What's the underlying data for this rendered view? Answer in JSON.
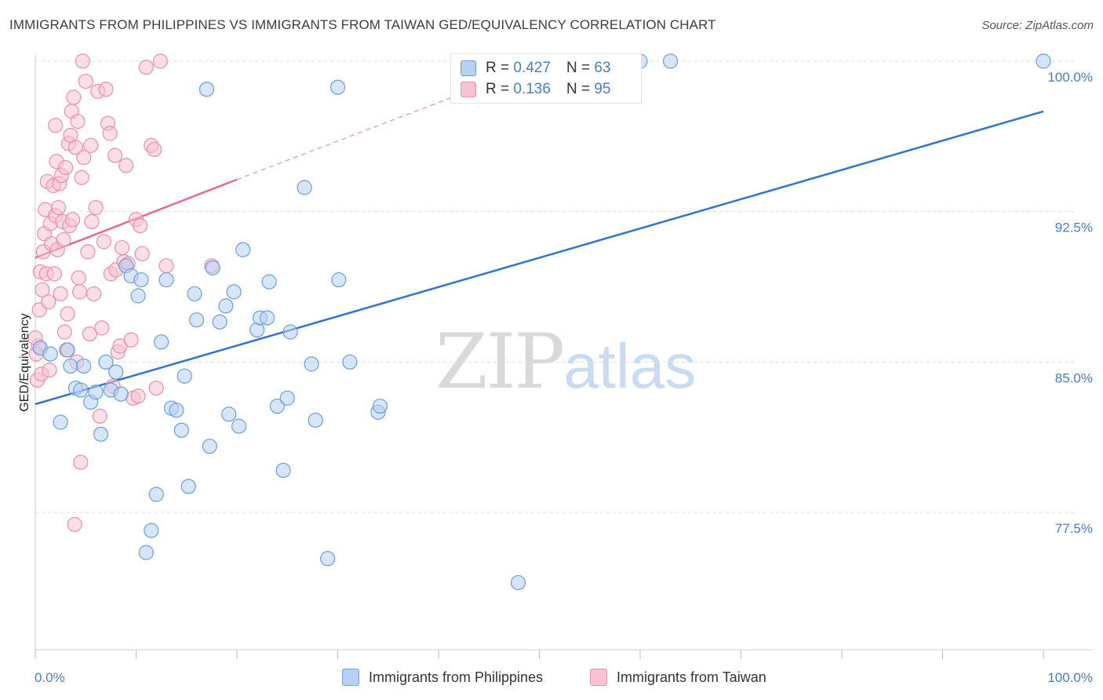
{
  "title": "IMMIGRANTS FROM PHILIPPINES VS IMMIGRANTS FROM TAIWAN GED/EQUIVALENCY CORRELATION CHART",
  "source": "Source: ZipAtlas.com",
  "watermark": {
    "zip": "ZIP",
    "atlas": "atlas"
  },
  "legend_top": [
    {
      "r_label": "R =",
      "r_value": "0.427",
      "n_label": "N =",
      "n_value": "63"
    },
    {
      "r_label": "R =",
      "r_value": "0.136",
      "n_label": "N =",
      "n_value": "95"
    }
  ],
  "colors": {
    "blue_fill": "#b7d0f3",
    "blue_stroke": "#6b9ee0",
    "blue_line": "#3374cc",
    "pink_fill": "#f7c2d1",
    "pink_stroke": "#eb8fab",
    "pink_line": "#e56a93",
    "grid": "#dddddd",
    "axis_label": "#4a7cc9"
  },
  "chart_data": {
    "type": "scatter",
    "title": "IMMIGRANTS FROM PHILIPPINES VS IMMIGRANTS FROM TAIWAN GED/EQUIVALENCY CORRELATION CHART",
    "xlabel": "",
    "ylabel": "GED/Equivalency",
    "xlim": [
      0,
      100
    ],
    "ylim": [
      71.5,
      101.5
    ],
    "x_tick_labels": [
      "0.0%",
      "100.0%"
    ],
    "y_ticks": [
      77.5,
      85.0,
      92.5,
      100.0
    ],
    "y_tick_labels": [
      "77.5%",
      "85.0%",
      "92.5%",
      "100.0%"
    ],
    "grid": true,
    "legend_position": "bottom",
    "series": [
      {
        "name": "Immigrants from Philippines",
        "color": "blue",
        "trend": {
          "x": [
            0,
            100
          ],
          "y": [
            82.9,
            97.5
          ],
          "dashed_extension": false
        },
        "points": [
          [
            0.5,
            85.7
          ],
          [
            1.5,
            85.4
          ],
          [
            2.5,
            82.0
          ],
          [
            3.2,
            85.6
          ],
          [
            3.5,
            84.8
          ],
          [
            4.0,
            83.7
          ],
          [
            4.5,
            83.6
          ],
          [
            4.8,
            84.8
          ],
          [
            5.5,
            83.0
          ],
          [
            6.0,
            83.5
          ],
          [
            6.5,
            81.4
          ],
          [
            7.0,
            85.0
          ],
          [
            7.5,
            83.6
          ],
          [
            8.0,
            84.5
          ],
          [
            8.5,
            83.4
          ],
          [
            9.0,
            89.8
          ],
          [
            9.5,
            89.3
          ],
          [
            10.2,
            88.3
          ],
          [
            10.5,
            89.1
          ],
          [
            11.0,
            75.5
          ],
          [
            11.5,
            76.6
          ],
          [
            12.0,
            78.4
          ],
          [
            12.5,
            86.0
          ],
          [
            13.0,
            89.1
          ],
          [
            13.5,
            82.7
          ],
          [
            14.0,
            82.6
          ],
          [
            14.5,
            81.6
          ],
          [
            14.8,
            84.3
          ],
          [
            15.2,
            78.8
          ],
          [
            15.8,
            88.4
          ],
          [
            16.0,
            87.1
          ],
          [
            17.0,
            98.6
          ],
          [
            17.3,
            80.8
          ],
          [
            17.6,
            89.7
          ],
          [
            18.3,
            87.0
          ],
          [
            18.9,
            87.8
          ],
          [
            19.2,
            82.4
          ],
          [
            19.7,
            88.5
          ],
          [
            20.2,
            81.8
          ],
          [
            20.6,
            90.6
          ],
          [
            22.0,
            86.6
          ],
          [
            22.3,
            87.2
          ],
          [
            23.0,
            87.2
          ],
          [
            23.2,
            89.0
          ],
          [
            24.0,
            82.8
          ],
          [
            24.6,
            79.6
          ],
          [
            25.0,
            83.2
          ],
          [
            25.3,
            86.5
          ],
          [
            26.7,
            93.7
          ],
          [
            27.4,
            84.9
          ],
          [
            27.8,
            82.1
          ],
          [
            29.0,
            75.2
          ],
          [
            30.1,
            89.1
          ],
          [
            30.0,
            98.7
          ],
          [
            31.2,
            85.0
          ],
          [
            34.0,
            82.5
          ],
          [
            34.2,
            82.8
          ],
          [
            47.9,
            74.0
          ],
          [
            60.0,
            100.0
          ],
          [
            63.0,
            100.0
          ],
          [
            100.0,
            100.0
          ]
        ]
      },
      {
        "name": "Immigrants from Taiwan",
        "color": "pink",
        "trend": {
          "x": [
            0,
            20
          ],
          "y": [
            90.2,
            94.1
          ],
          "dashed_extension": true,
          "dashed_to": [
            45,
            98.9
          ]
        },
        "points": [
          [
            0.2,
            84.1
          ],
          [
            0.3,
            85.8
          ],
          [
            0.4,
            87.6
          ],
          [
            0.5,
            89.5
          ],
          [
            0.6,
            84.4
          ],
          [
            0.7,
            88.6
          ],
          [
            0.8,
            90.5
          ],
          [
            0.9,
            91.4
          ],
          [
            1.0,
            92.6
          ],
          [
            1.1,
            89.4
          ],
          [
            1.2,
            94.0
          ],
          [
            1.3,
            88.0
          ],
          [
            1.5,
            91.9
          ],
          [
            1.6,
            90.9
          ],
          [
            1.8,
            93.8
          ],
          [
            1.9,
            89.4
          ],
          [
            2.0,
            92.3
          ],
          [
            2.1,
            95.0
          ],
          [
            2.2,
            90.6
          ],
          [
            2.3,
            92.7
          ],
          [
            2.4,
            93.9
          ],
          [
            2.5,
            88.4
          ],
          [
            2.6,
            94.3
          ],
          [
            2.7,
            92.0
          ],
          [
            2.8,
            91.1
          ],
          [
            2.9,
            86.5
          ],
          [
            3.0,
            94.7
          ],
          [
            3.1,
            85.6
          ],
          [
            3.2,
            87.4
          ],
          [
            3.3,
            95.9
          ],
          [
            3.4,
            91.8
          ],
          [
            3.5,
            96.3
          ],
          [
            3.6,
            97.5
          ],
          [
            3.7,
            92.1
          ],
          [
            3.8,
            98.2
          ],
          [
            3.9,
            76.9
          ],
          [
            4.0,
            95.7
          ],
          [
            4.1,
            85.0
          ],
          [
            4.2,
            97.0
          ],
          [
            4.3,
            89.2
          ],
          [
            4.4,
            88.5
          ],
          [
            4.5,
            80.0
          ],
          [
            4.6,
            94.2
          ],
          [
            4.8,
            95.2
          ],
          [
            5.0,
            99.0
          ],
          [
            5.2,
            90.5
          ],
          [
            5.4,
            86.4
          ],
          [
            5.5,
            95.8
          ],
          [
            5.6,
            92.0
          ],
          [
            5.8,
            88.4
          ],
          [
            6.0,
            92.7
          ],
          [
            6.2,
            98.5
          ],
          [
            6.4,
            82.3
          ],
          [
            6.6,
            86.7
          ],
          [
            6.8,
            91.0
          ],
          [
            7.0,
            98.6
          ],
          [
            7.2,
            96.9
          ],
          [
            7.4,
            96.4
          ],
          [
            7.5,
            89.4
          ],
          [
            7.7,
            83.8
          ],
          [
            7.9,
            95.3
          ],
          [
            8.0,
            89.6
          ],
          [
            8.2,
            85.5
          ],
          [
            8.4,
            85.8
          ],
          [
            8.6,
            90.7
          ],
          [
            8.8,
            90.0
          ],
          [
            9.0,
            94.8
          ],
          [
            9.2,
            89.9
          ],
          [
            9.5,
            86.1
          ],
          [
            9.7,
            83.2
          ],
          [
            10.0,
            92.1
          ],
          [
            10.2,
            83.3
          ],
          [
            10.4,
            91.8
          ],
          [
            10.6,
            90.4
          ],
          [
            11.0,
            99.7
          ],
          [
            11.5,
            95.8
          ],
          [
            11.8,
            95.6
          ],
          [
            12.0,
            83.7
          ],
          [
            12.4,
            100.0
          ],
          [
            13.0,
            89.8
          ],
          [
            17.5,
            89.8
          ],
          [
            0.0,
            86.2
          ],
          [
            0.1,
            85.4
          ],
          [
            1.4,
            84.6
          ],
          [
            2.0,
            96.8
          ],
          [
            4.7,
            100.0
          ]
        ]
      }
    ]
  },
  "bottom_legend": [
    {
      "label": "Immigrants from Philippines"
    },
    {
      "label": "Immigrants from Taiwan"
    }
  ]
}
